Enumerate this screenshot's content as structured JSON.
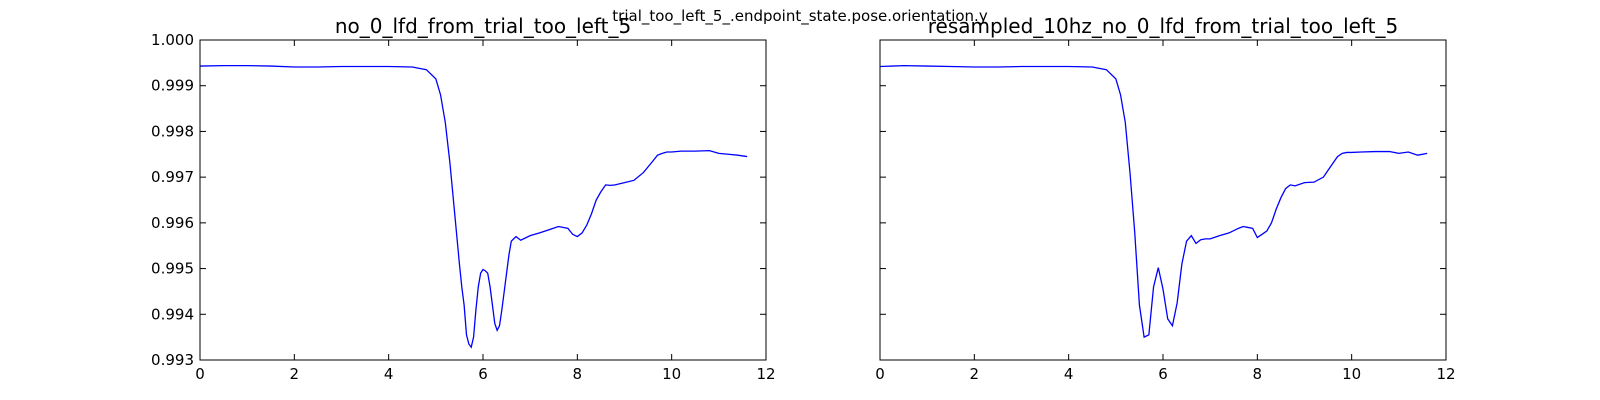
{
  "figure": {
    "suptitle": "trial_too_left_5_.endpoint_state.pose.orientation.y"
  },
  "colors": {
    "line": "#0000ff",
    "axes": "#000000",
    "background": "#ffffff"
  },
  "chart_data": [
    {
      "type": "line",
      "title": "no_0_lfd_from_trial_too_left_5",
      "xlabel": "",
      "ylabel": "",
      "xlim": [
        0,
        12
      ],
      "ylim": [
        0.993,
        1.0
      ],
      "xticks": [
        0,
        2,
        4,
        6,
        8,
        10,
        12
      ],
      "xtick_labels": [
        "0",
        "2",
        "4",
        "6",
        "8",
        "10",
        "12"
      ],
      "yticks": [
        0.993,
        0.994,
        0.995,
        0.996,
        0.997,
        0.998,
        0.999,
        1.0
      ],
      "ytick_labels": [
        "0.993",
        "0.994",
        "0.995",
        "0.996",
        "0.997",
        "0.998",
        "0.999",
        "1.000"
      ],
      "grid": false,
      "legend": "none",
      "series": [
        {
          "x": [
            0,
            0.5,
            1,
            1.5,
            2,
            2.5,
            3,
            3.5,
            4,
            4.5,
            4.8,
            5.0,
            5.1,
            5.2,
            5.3,
            5.4,
            5.5,
            5.55,
            5.6,
            5.65,
            5.7,
            5.75,
            5.8,
            5.85,
            5.9,
            5.95,
            6.0,
            6.05,
            6.1,
            6.15,
            6.2,
            6.25,
            6.3,
            6.35,
            6.4,
            6.45,
            6.5,
            6.55,
            6.6,
            6.65,
            6.7,
            6.8,
            7.0,
            7.2,
            7.4,
            7.6,
            7.8,
            7.9,
            8.0,
            8.1,
            8.2,
            8.3,
            8.4,
            8.5,
            8.6,
            8.7,
            8.8,
            9.0,
            9.2,
            9.4,
            9.6,
            9.7,
            9.8,
            9.9,
            10.0,
            10.2,
            10.5,
            10.8,
            11.0,
            11.2,
            11.4,
            11.6
          ],
          "y": [
            0.99943,
            0.99944,
            0.99944,
            0.99943,
            0.99941,
            0.99941,
            0.99942,
            0.99942,
            0.99942,
            0.99941,
            0.99935,
            0.99915,
            0.9988,
            0.9982,
            0.9973,
            0.9962,
            0.9951,
            0.9946,
            0.9942,
            0.99355,
            0.99335,
            0.99328,
            0.9935,
            0.9941,
            0.9946,
            0.9949,
            0.99498,
            0.99495,
            0.9949,
            0.9946,
            0.9942,
            0.9938,
            0.99365,
            0.99375,
            0.9941,
            0.9945,
            0.9949,
            0.9953,
            0.9956,
            0.99565,
            0.9957,
            0.99562,
            0.99572,
            0.99578,
            0.99585,
            0.99592,
            0.99588,
            0.99575,
            0.9957,
            0.99578,
            0.99595,
            0.9962,
            0.9965,
            0.99668,
            0.99683,
            0.99682,
            0.99683,
            0.99688,
            0.99693,
            0.9971,
            0.99735,
            0.99748,
            0.99752,
            0.99755,
            0.99755,
            0.99757,
            0.99757,
            0.99758,
            0.99752,
            0.9975,
            0.99748,
            0.99745
          ]
        }
      ]
    },
    {
      "type": "line",
      "title": "resampled_10hz_no_0_lfd_from_trial_too_left_5",
      "xlabel": "",
      "ylabel": "",
      "xlim": [
        0,
        12
      ],
      "ylim": [
        0.993,
        1.0
      ],
      "xticks": [
        0,
        2,
        4,
        6,
        8,
        10,
        12
      ],
      "xtick_labels": [
        "0",
        "2",
        "4",
        "6",
        "8",
        "10",
        "12"
      ],
      "grid": false,
      "legend": "none",
      "series": [
        {
          "x": [
            0,
            0.5,
            1,
            1.5,
            2,
            2.5,
            3,
            3.5,
            4,
            4.5,
            4.8,
            5.0,
            5.1,
            5.2,
            5.3,
            5.4,
            5.5,
            5.6,
            5.7,
            5.8,
            5.9,
            6.0,
            6.1,
            6.2,
            6.3,
            6.4,
            6.5,
            6.6,
            6.7,
            6.8,
            6.9,
            7.0,
            7.2,
            7.4,
            7.6,
            7.7,
            7.8,
            7.9,
            8.0,
            8.1,
            8.2,
            8.3,
            8.4,
            8.5,
            8.6,
            8.7,
            8.8,
            9.0,
            9.2,
            9.4,
            9.6,
            9.7,
            9.8,
            9.9,
            10.0,
            10.2,
            10.5,
            10.8,
            11.0,
            11.2,
            11.4,
            11.6
          ],
          "y": [
            0.99942,
            0.99944,
            0.99943,
            0.99942,
            0.99941,
            0.99941,
            0.99942,
            0.99942,
            0.99942,
            0.99941,
            0.99935,
            0.99915,
            0.9988,
            0.9982,
            0.9971,
            0.9958,
            0.9942,
            0.9935,
            0.99355,
            0.9946,
            0.99502,
            0.99455,
            0.9939,
            0.99375,
            0.99425,
            0.9951,
            0.9956,
            0.99572,
            0.99555,
            0.99563,
            0.99565,
            0.99565,
            0.99572,
            0.99578,
            0.99588,
            0.99592,
            0.9959,
            0.99588,
            0.99568,
            0.99575,
            0.99582,
            0.996,
            0.9963,
            0.99655,
            0.99675,
            0.99683,
            0.99681,
            0.99688,
            0.99689,
            0.997,
            0.9973,
            0.99745,
            0.99752,
            0.99754,
            0.99754,
            0.99755,
            0.99756,
            0.99756,
            0.99752,
            0.99755,
            0.99748,
            0.99752
          ]
        }
      ]
    }
  ]
}
